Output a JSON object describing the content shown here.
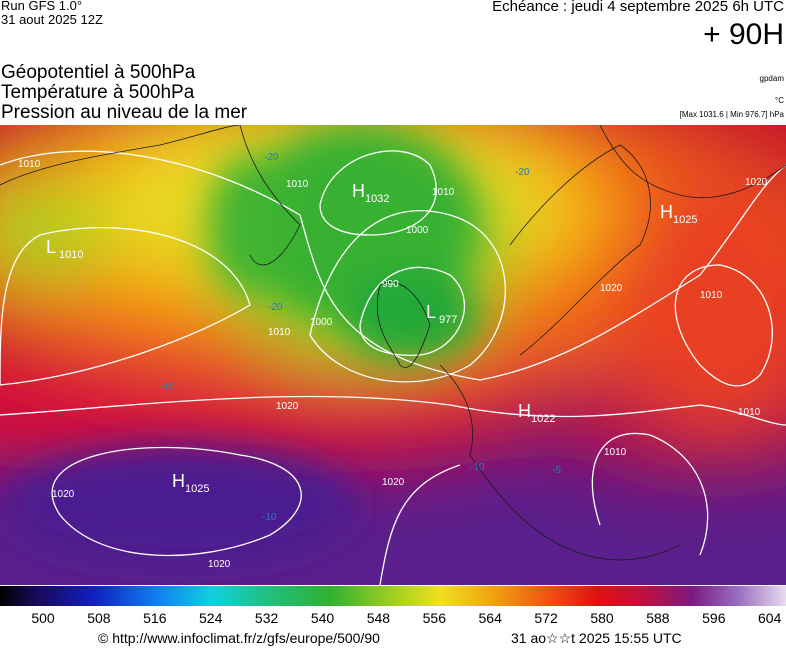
{
  "header": {
    "run": "Run GFS 1.0°",
    "date": "31 aout 2025 12Z",
    "echeance": "Echéance : jeudi 4 septembre 2025 6h UTC",
    "horizon": "+ 90H",
    "fields": [
      "Géopotentiel à 500hPa",
      "Température à 500hPa",
      "Pression au niveau de la mer"
    ],
    "units": [
      "gpdam",
      "°C",
      "[Max 1031.6 | Min 976.7] hPa"
    ]
  },
  "map": {
    "centers": [
      {
        "letter": "H",
        "value": "1032"
      },
      {
        "letter": "L",
        "value": "977"
      },
      {
        "letter": "H",
        "value": "1025"
      },
      {
        "letter": "H",
        "value": "1022"
      },
      {
        "letter": "H",
        "value": "1025"
      },
      {
        "letter": "L",
        "value": "1010"
      }
    ],
    "isobar_labels": [
      "1010",
      "1010",
      "1000",
      "990",
      "1010",
      "1000",
      "1010",
      "1020",
      "1020",
      "1020",
      "1020",
      "1010",
      "1010",
      "1020",
      "1010",
      "1020"
    ],
    "temperature_labels": [
      "-20",
      "-20",
      "-20",
      "-10",
      "-10",
      "-10",
      "-5"
    ]
  },
  "colorbar": {
    "ticks": [
      500,
      508,
      516,
      524,
      532,
      540,
      548,
      556,
      564,
      572,
      580,
      588,
      596,
      604
    ]
  },
  "footer": {
    "credit": "© http://www.infoclimat.fr/z/gfs/europe/500/90",
    "time": "31 ao☆☆t 2025 15:55 UTC"
  }
}
